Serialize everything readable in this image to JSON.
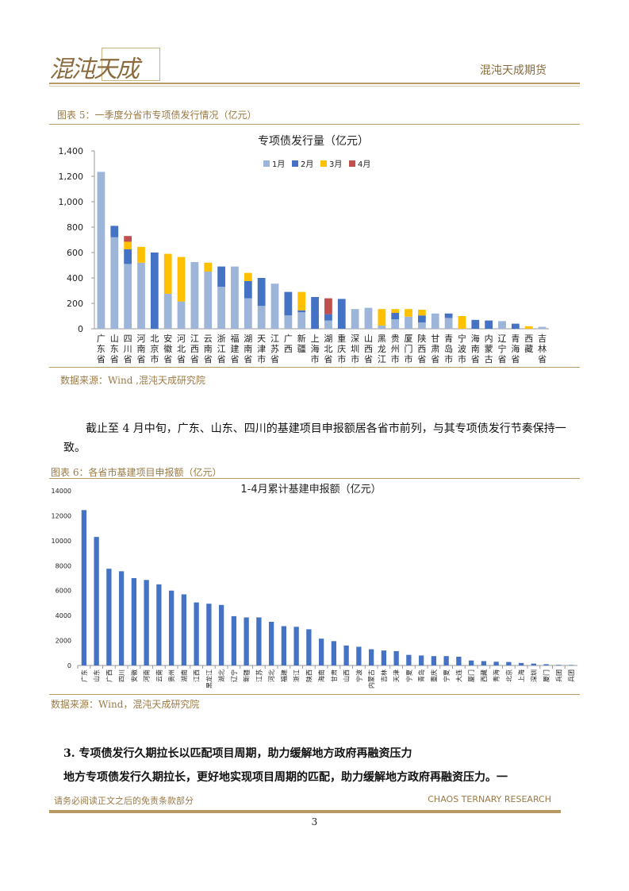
{
  "header": {
    "logo_text": "混沌天成",
    "company": "混沌天成期货"
  },
  "figure5": {
    "caption": "图表 5：一季度分省市专项债发行情况（亿元）",
    "source": "数据来源：Wind ,混沌天成研究院"
  },
  "paragraph1": "截止至 4 月中旬，广东、山东、四川的基建项目申报额居各省市前列，与其专项债发行节奏保持一致。",
  "figure6": {
    "caption": "图表 6：各省市基建项目申报额（亿元）",
    "source": "数据来源：Wind，混沌天成研究院"
  },
  "section3": {
    "heading": "3.  专项债发行久期拉长以匹配项目周期，助力缓解地方政府再融资压力",
    "body": "地方专项债发行久期拉长，更好地实现项目周期的匹配，助力缓解地方政府再融资压力。一"
  },
  "footer": {
    "disclaimer": "请务必阅读正文之后的免责条款部分",
    "brand": "CHAOS TERNARY RESEARCH",
    "page": "3"
  },
  "colors": {
    "jan": "#9db5d9",
    "feb": "#4472c4",
    "mar": "#ffc000",
    "apr": "#c0504d",
    "bar": "#4472c4",
    "accent": "#b79a63"
  },
  "chart_data": [
    {
      "type": "bar",
      "stacked": true,
      "title": "专项债发行量（亿元）",
      "categories": [
        "广东省",
        "山东省",
        "四川省",
        "河南省",
        "北京市",
        "安徽省",
        "河北省",
        "江西省",
        "云南省",
        "浙江省",
        "福建省",
        "湖南省",
        "天津市",
        "江苏省",
        "广西",
        "新疆",
        "上海市",
        "湖北省",
        "重庆市",
        "深圳市",
        "山西省",
        "黑龙江",
        "贵州市",
        "厦门市",
        "陕西省",
        "甘肃省",
        "青岛市",
        "宁波市",
        "海南省",
        "内蒙古",
        "辽宁省",
        "青海省",
        "西藏",
        "吉林省"
      ],
      "series": [
        {
          "name": "1月",
          "values": [
            1235,
            720,
            510,
            520,
            0,
            275,
            215,
            525,
            450,
            330,
            490,
            240,
            180,
            355,
            105,
            130,
            0,
            65,
            0,
            155,
            165,
            25,
            75,
            95,
            50,
            120,
            85,
            0,
            0,
            0,
            60,
            0,
            0,
            15
          ]
        },
        {
          "name": "2月",
          "values": [
            0,
            90,
            115,
            0,
            600,
            0,
            0,
            0,
            0,
            160,
            0,
            135,
            220,
            0,
            185,
            15,
            250,
            50,
            235,
            0,
            0,
            0,
            50,
            0,
            55,
            0,
            35,
            0,
            70,
            65,
            0,
            40,
            0,
            0
          ]
        },
        {
          "name": "3月",
          "values": [
            0,
            0,
            60,
            125,
            0,
            315,
            350,
            0,
            70,
            0,
            0,
            65,
            0,
            0,
            0,
            145,
            0,
            0,
            0,
            0,
            0,
            130,
            30,
            60,
            45,
            0,
            0,
            100,
            0,
            0,
            0,
            0,
            20,
            0
          ]
        },
        {
          "name": "4月",
          "values": [
            0,
            0,
            45,
            0,
            0,
            0,
            0,
            0,
            0,
            0,
            0,
            0,
            0,
            0,
            0,
            0,
            0,
            125,
            0,
            0,
            0,
            0,
            0,
            0,
            0,
            0,
            0,
            0,
            0,
            0,
            0,
            0,
            0,
            0
          ]
        }
      ],
      "ylim": [
        0,
        1400
      ],
      "yticks": [
        "0",
        "200",
        "400",
        "600",
        "800",
        "1,000",
        "1,200",
        "1,400"
      ],
      "legend": "top"
    },
    {
      "type": "bar",
      "title": "1-4月累计基建申报额（亿元）",
      "categories": [
        "广东",
        "山东",
        "广西",
        "四川",
        "安徽",
        "河南",
        "云南",
        "贵州",
        "湖南",
        "江西",
        "黑龙江",
        "湖北",
        "辽宁",
        "新疆",
        "江苏",
        "河北",
        "福建",
        "浙江",
        "陕西",
        "海南",
        "甘肃",
        "山西",
        "宁波",
        "内蒙古",
        "吉林",
        "天津",
        "宁夏",
        "青岛",
        "重庆",
        "宁夏",
        "大连",
        "厦门",
        "西藏",
        "青海",
        "北京",
        "上海",
        "深圳",
        "厦门",
        "兵团",
        "兵团"
      ],
      "series": [
        {
          "values": [
            12450,
            10300,
            7750,
            7550,
            7000,
            6850,
            6500,
            6000,
            5700,
            5050,
            4950,
            4850,
            3950,
            3850,
            3850,
            3500,
            3150,
            3100,
            2900,
            2150,
            1950,
            1600,
            1500,
            1300,
            1200,
            1150,
            850,
            800,
            750,
            750,
            700,
            400,
            350,
            300,
            280,
            200,
            150,
            100,
            50,
            40
          ]
        }
      ],
      "ylim": [
        0,
        14000
      ],
      "yticks": [
        "0",
        "2000",
        "4000",
        "6000",
        "8000",
        "10000",
        "12000",
        "14000"
      ]
    }
  ]
}
